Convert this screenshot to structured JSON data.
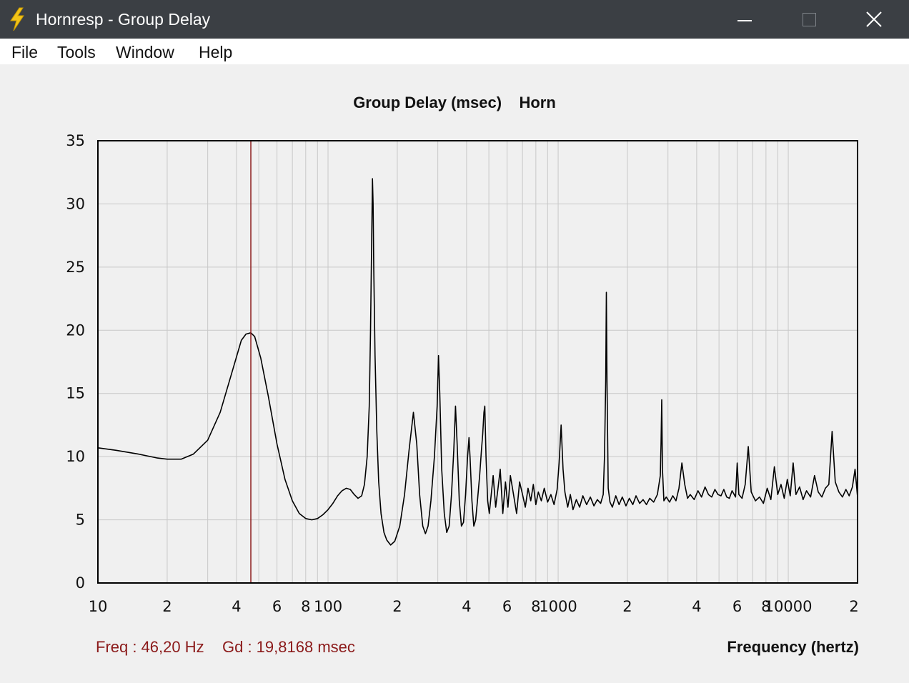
{
  "window": {
    "title": "Hornresp - Group Delay",
    "controls": {
      "minimize_icon": "minimize-icon",
      "maximize_icon": "maximize-icon",
      "close_icon": "close-icon"
    },
    "app_icon": "lightning-bolt-icon"
  },
  "menu": [
    "File",
    "Tools",
    "Window",
    "Help"
  ],
  "readout": {
    "freq": "Freq : 46,20 Hz",
    "gd": "Gd : 19,8168 msec"
  },
  "colors": {
    "titlebar": "#3b3f44",
    "marker": "#8b1a1a",
    "trace": "#000000",
    "grid": "#c8c8c8"
  },
  "chart_data": {
    "type": "line",
    "title": "Group Delay (msec)",
    "subtitle": "Horn",
    "xlabel": "Frequency (hertz)",
    "ylabel": "",
    "x_scale": "log",
    "xlim": [
      10,
      20000
    ],
    "ylim": [
      0,
      35
    ],
    "grid": true,
    "yticks": [
      {
        "value": 0,
        "label": "0"
      },
      {
        "value": 5,
        "label": "5"
      },
      {
        "value": 10,
        "label": "10"
      },
      {
        "value": 15,
        "label": "15"
      },
      {
        "value": 20,
        "label": "20"
      },
      {
        "value": 25,
        "label": "25"
      },
      {
        "value": 30,
        "label": "30"
      },
      {
        "value": 35,
        "label": "35"
      }
    ],
    "xticks": [
      {
        "value": 10,
        "label": "10"
      },
      {
        "value": 20,
        "label": "2"
      },
      {
        "value": 40,
        "label": "4"
      },
      {
        "value": 60,
        "label": "6"
      },
      {
        "value": 80,
        "label": "8"
      },
      {
        "value": 100,
        "label": "100"
      },
      {
        "value": 200,
        "label": "2"
      },
      {
        "value": 400,
        "label": "4"
      },
      {
        "value": 600,
        "label": "6"
      },
      {
        "value": 800,
        "label": "8"
      },
      {
        "value": 1000,
        "label": "1000"
      },
      {
        "value": 2000,
        "label": "2"
      },
      {
        "value": 4000,
        "label": "4"
      },
      {
        "value": 6000,
        "label": "6"
      },
      {
        "value": 8000,
        "label": "8"
      },
      {
        "value": 10000,
        "label": "10000"
      },
      {
        "value": 20000,
        "label": "2"
      }
    ],
    "marker": {
      "freq": 46.2,
      "value": 19.8168
    },
    "series": [
      {
        "points": [
          [
            10,
            10.7
          ],
          [
            12,
            10.5
          ],
          [
            15,
            10.2
          ],
          [
            18,
            9.9
          ],
          [
            20,
            9.8
          ],
          [
            23,
            9.8
          ],
          [
            26,
            10.2
          ],
          [
            30,
            11.3
          ],
          [
            34,
            13.5
          ],
          [
            38,
            16.5
          ],
          [
            42,
            19.2
          ],
          [
            44,
            19.7
          ],
          [
            46.2,
            19.8
          ],
          [
            48,
            19.5
          ],
          [
            51,
            17.8
          ],
          [
            55,
            14.8
          ],
          [
            60,
            11.0
          ],
          [
            65,
            8.2
          ],
          [
            70,
            6.5
          ],
          [
            75,
            5.5
          ],
          [
            80,
            5.1
          ],
          [
            85,
            5.0
          ],
          [
            90,
            5.1
          ],
          [
            95,
            5.4
          ],
          [
            100,
            5.8
          ],
          [
            105,
            6.3
          ],
          [
            110,
            6.9
          ],
          [
            115,
            7.3
          ],
          [
            120,
            7.5
          ],
          [
            125,
            7.4
          ],
          [
            130,
            7.0
          ],
          [
            135,
            6.7
          ],
          [
            140,
            6.9
          ],
          [
            144,
            7.8
          ],
          [
            148,
            10.0
          ],
          [
            151,
            14.0
          ],
          [
            153,
            20.0
          ],
          [
            155,
            28.0
          ],
          [
            156,
            32.0
          ],
          [
            157,
            30.0
          ],
          [
            158,
            25.0
          ],
          [
            160,
            18.0
          ],
          [
            163,
            12.0
          ],
          [
            166,
            8.0
          ],
          [
            170,
            5.5
          ],
          [
            175,
            4.0
          ],
          [
            180,
            3.4
          ],
          [
            187,
            3.0
          ],
          [
            195,
            3.3
          ],
          [
            205,
            4.5
          ],
          [
            215,
            7.0
          ],
          [
            225,
            10.5
          ],
          [
            235,
            13.5
          ],
          [
            243,
            11.0
          ],
          [
            250,
            7.0
          ],
          [
            258,
            4.5
          ],
          [
            265,
            3.9
          ],
          [
            272,
            4.5
          ],
          [
            280,
            6.5
          ],
          [
            290,
            10.0
          ],
          [
            298,
            14.0
          ],
          [
            302,
            18.0
          ],
          [
            306,
            15.0
          ],
          [
            312,
            9.0
          ],
          [
            320,
            5.5
          ],
          [
            328,
            4.0
          ],
          [
            336,
            4.5
          ],
          [
            344,
            7.0
          ],
          [
            352,
            10.5
          ],
          [
            358,
            14.0
          ],
          [
            364,
            11.0
          ],
          [
            372,
            6.5
          ],
          [
            380,
            4.5
          ],
          [
            388,
            4.8
          ],
          [
            396,
            7.0
          ],
          [
            404,
            10.0
          ],
          [
            410,
            11.5
          ],
          [
            414,
            10.0
          ],
          [
            422,
            6.5
          ],
          [
            430,
            4.5
          ],
          [
            438,
            5.0
          ],
          [
            446,
            6.5
          ],
          [
            456,
            8.5
          ],
          [
            464,
            10.5
          ],
          [
            470,
            11.8
          ],
          [
            476,
            13.5
          ],
          [
            480,
            14.0
          ],
          [
            486,
            10.0
          ],
          [
            494,
            6.5
          ],
          [
            502,
            5.5
          ],
          [
            512,
            7.0
          ],
          [
            522,
            8.5
          ],
          [
            535,
            6.0
          ],
          [
            548,
            7.5
          ],
          [
            560,
            9.0
          ],
          [
            575,
            5.5
          ],
          [
            590,
            8.0
          ],
          [
            605,
            6.0
          ],
          [
            620,
            8.5
          ],
          [
            640,
            7.0
          ],
          [
            660,
            5.5
          ],
          [
            680,
            8.0
          ],
          [
            700,
            7.0
          ],
          [
            720,
            6.0
          ],
          [
            740,
            7.5
          ],
          [
            760,
            6.5
          ],
          [
            780,
            7.8
          ],
          [
            800,
            6.2
          ],
          [
            820,
            7.2
          ],
          [
            845,
            6.5
          ],
          [
            870,
            7.5
          ],
          [
            900,
            6.4
          ],
          [
            930,
            7.0
          ],
          [
            960,
            6.2
          ],
          [
            990,
            7.4
          ],
          [
            1010,
            9.5
          ],
          [
            1030,
            12.5
          ],
          [
            1050,
            9.0
          ],
          [
            1070,
            7.2
          ],
          [
            1100,
            6.0
          ],
          [
            1130,
            7.0
          ],
          [
            1160,
            5.8
          ],
          [
            1200,
            6.6
          ],
          [
            1240,
            6.0
          ],
          [
            1280,
            6.9
          ],
          [
            1330,
            6.2
          ],
          [
            1380,
            6.8
          ],
          [
            1430,
            6.1
          ],
          [
            1480,
            6.6
          ],
          [
            1530,
            6.3
          ],
          [
            1570,
            7.0
          ],
          [
            1590,
            10.0
          ],
          [
            1610,
            16.0
          ],
          [
            1620,
            23.0
          ],
          [
            1630,
            16.0
          ],
          [
            1650,
            7.5
          ],
          [
            1680,
            6.4
          ],
          [
            1720,
            6.0
          ],
          [
            1780,
            6.9
          ],
          [
            1840,
            6.2
          ],
          [
            1900,
            6.8
          ],
          [
            1970,
            6.1
          ],
          [
            2040,
            6.7
          ],
          [
            2110,
            6.2
          ],
          [
            2180,
            6.9
          ],
          [
            2260,
            6.3
          ],
          [
            2340,
            6.6
          ],
          [
            2420,
            6.2
          ],
          [
            2500,
            6.7
          ],
          [
            2600,
            6.4
          ],
          [
            2700,
            7.0
          ],
          [
            2780,
            8.5
          ],
          [
            2800,
            11.0
          ],
          [
            2820,
            14.5
          ],
          [
            2840,
            9.0
          ],
          [
            2880,
            6.5
          ],
          [
            2950,
            6.8
          ],
          [
            3050,
            6.4
          ],
          [
            3150,
            6.9
          ],
          [
            3250,
            6.5
          ],
          [
            3350,
            7.5
          ],
          [
            3450,
            9.5
          ],
          [
            3550,
            7.8
          ],
          [
            3650,
            6.7
          ],
          [
            3750,
            7.0
          ],
          [
            3900,
            6.6
          ],
          [
            4050,
            7.3
          ],
          [
            4200,
            6.8
          ],
          [
            4350,
            7.6
          ],
          [
            4500,
            7.0
          ],
          [
            4650,
            6.8
          ],
          [
            4800,
            7.4
          ],
          [
            4950,
            7.0
          ],
          [
            5100,
            6.9
          ],
          [
            5250,
            7.4
          ],
          [
            5400,
            6.8
          ],
          [
            5550,
            6.7
          ],
          [
            5700,
            7.3
          ],
          [
            5900,
            6.8
          ],
          [
            6000,
            9.5
          ],
          [
            6100,
            7.0
          ],
          [
            6300,
            6.7
          ],
          [
            6500,
            7.8
          ],
          [
            6700,
            10.8
          ],
          [
            6900,
            7.2
          ],
          [
            7200,
            6.5
          ],
          [
            7500,
            6.8
          ],
          [
            7800,
            6.3
          ],
          [
            8100,
            7.5
          ],
          [
            8400,
            6.6
          ],
          [
            8700,
            9.2
          ],
          [
            9000,
            7.0
          ],
          [
            9300,
            7.8
          ],
          [
            9600,
            6.7
          ],
          [
            9900,
            8.2
          ],
          [
            10200,
            6.9
          ],
          [
            10500,
            9.5
          ],
          [
            10800,
            7.0
          ],
          [
            11200,
            7.6
          ],
          [
            11600,
            6.6
          ],
          [
            12000,
            7.3
          ],
          [
            12500,
            6.8
          ],
          [
            13000,
            8.5
          ],
          [
            13500,
            7.2
          ],
          [
            14000,
            6.8
          ],
          [
            14500,
            7.5
          ],
          [
            15000,
            7.8
          ],
          [
            15500,
            12.0
          ],
          [
            16000,
            8.0
          ],
          [
            16600,
            7.2
          ],
          [
            17200,
            6.8
          ],
          [
            17800,
            7.4
          ],
          [
            18400,
            6.9
          ],
          [
            19000,
            7.6
          ],
          [
            19500,
            9.0
          ],
          [
            20000,
            6.8
          ]
        ]
      }
    ]
  }
}
